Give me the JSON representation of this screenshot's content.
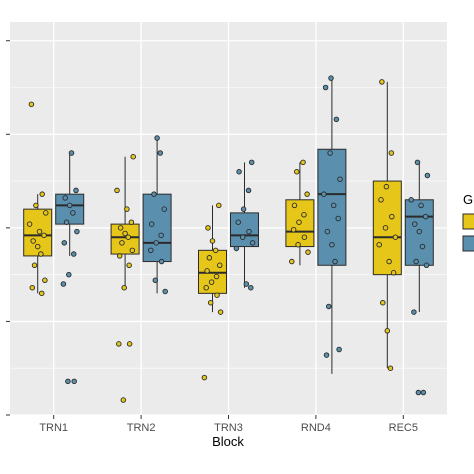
{
  "chart_data": {
    "type": "boxplot",
    "title": "",
    "xlabel": "Block",
    "ylabel": "",
    "ylim": [
      0,
      2.1
    ],
    "grid": true,
    "legend_position": "right",
    "legend_title": "G",
    "categories": [
      "TRN1",
      "TRN2",
      "TRN3",
      "RND4",
      "REC5"
    ],
    "colors": {
      "panel": "#ebebeb",
      "gridline": "#ffffff",
      "group1_fill": "#e6c619",
      "group2_fill": "#5a8fae",
      "outline": "#2b2b2b"
    },
    "series": [
      {
        "name": "",
        "color": "#e6c619",
        "boxes": [
          {
            "min": 0.65,
            "q1": 0.85,
            "median": 0.96,
            "q3": 1.1,
            "max": 1.18,
            "points": [
              1.66,
              1.18,
              1.12,
              1.08,
              1.02,
              0.98,
              0.96,
              0.93,
              0.9,
              0.86,
              0.8,
              0.72,
              0.68,
              0.65
            ]
          },
          {
            "min": 0.68,
            "q1": 0.86,
            "median": 0.95,
            "q3": 1.02,
            "max": 1.38,
            "points": [
              1.38,
              1.2,
              1.1,
              1.03,
              1.0,
              0.97,
              0.95,
              0.92,
              0.88,
              0.85,
              0.8,
              0.68,
              0.38,
              0.38,
              0.08
            ]
          },
          {
            "min": 0.55,
            "q1": 0.65,
            "median": 0.76,
            "q3": 0.88,
            "max": 1.12,
            "points": [
              1.12,
              1.0,
              0.93,
              0.88,
              0.84,
              0.8,
              0.77,
              0.74,
              0.71,
              0.68,
              0.64,
              0.6,
              0.55,
              0.2
            ]
          },
          {
            "min": 0.8,
            "q1": 0.9,
            "median": 0.98,
            "q3": 1.15,
            "max": 1.35,
            "points": [
              1.35,
              1.3,
              1.18,
              1.12,
              1.07,
              1.03,
              0.99,
              0.95,
              0.91,
              0.87,
              0.82
            ]
          },
          {
            "min": 0.25,
            "q1": 0.75,
            "median": 0.95,
            "q3": 1.25,
            "max": 1.78,
            "points": [
              1.78,
              1.4,
              1.22,
              1.15,
              1.06,
              1.0,
              0.95,
              0.91,
              0.82,
              0.76,
              0.6,
              0.45,
              0.25
            ]
          }
        ]
      },
      {
        "name": "",
        "color": "#5a8fae",
        "boxes": [
          {
            "min": 0.85,
            "q1": 1.02,
            "median": 1.12,
            "q3": 1.18,
            "max": 1.4,
            "points": [
              1.4,
              1.2,
              1.16,
              1.12,
              1.08,
              1.03,
              0.98,
              0.92,
              0.86,
              0.75,
              0.7,
              0.18,
              0.18
            ]
          },
          {
            "min": 0.65,
            "q1": 0.82,
            "median": 0.92,
            "q3": 1.18,
            "max": 1.48,
            "points": [
              1.48,
              1.4,
              1.18,
              1.1,
              1.02,
              0.96,
              0.92,
              0.88,
              0.82,
              0.72,
              0.66
            ]
          },
          {
            "min": 0.68,
            "q1": 0.9,
            "median": 0.96,
            "q3": 1.08,
            "max": 1.35,
            "points": [
              1.35,
              1.3,
              1.2,
              1.1,
              1.03,
              0.98,
              0.95,
              0.92,
              0.89,
              0.7,
              0.68
            ]
          },
          {
            "min": 0.22,
            "q1": 0.8,
            "median": 1.18,
            "q3": 1.42,
            "max": 1.8,
            "points": [
              1.8,
              1.75,
              1.58,
              1.4,
              1.26,
              1.18,
              1.12,
              1.05,
              0.98,
              0.91,
              0.82,
              0.58,
              0.35,
              0.32
            ]
          },
          {
            "min": 0.55,
            "q1": 0.8,
            "median": 1.06,
            "q3": 1.15,
            "max": 1.35,
            "points": [
              1.35,
              1.28,
              1.15,
              1.12,
              1.06,
              1.02,
              0.98,
              0.9,
              0.82,
              0.8,
              0.55,
              0.12,
              0.12
            ]
          }
        ]
      }
    ]
  }
}
